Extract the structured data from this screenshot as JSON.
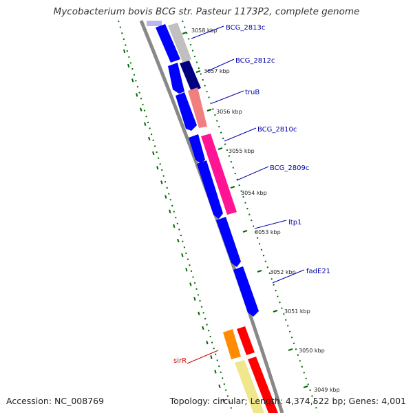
{
  "title": "Mycobacterium bovis BCG str. Pasteur 1173P2, complete genome",
  "accession": "Accession: NC_008769",
  "topology": "Topology: circular; Length: 4,374,522 bp; Genes: 4,001",
  "kbp_labels": [
    {
      "name": "kbp-3058",
      "text": "3058 kbp"
    },
    {
      "name": "kbp-3057",
      "text": "3057 kbp"
    },
    {
      "name": "kbp-3056",
      "text": "3056 kbp"
    },
    {
      "name": "kbp-3055",
      "text": "3055 kbp"
    },
    {
      "name": "kbp-3054",
      "text": "3054 kbp"
    },
    {
      "name": "kbp-3053",
      "text": "3053 kbp"
    },
    {
      "name": "kbp-3052",
      "text": "3052 kbp"
    },
    {
      "name": "kbp-3051",
      "text": "3051 kbp"
    },
    {
      "name": "kbp-3050",
      "text": "3050 kbp"
    },
    {
      "name": "kbp-3049",
      "text": "3049 kbp"
    }
  ],
  "gene_labels": [
    {
      "name": "BCG_2813c",
      "text": "BCG_2813c",
      "color": "#0000aa"
    },
    {
      "name": "BCG_2812c",
      "text": "BCG_2812c",
      "color": "#0000aa"
    },
    {
      "name": "truB",
      "text": "truB",
      "color": "#0000aa"
    },
    {
      "name": "BCG_2810c",
      "text": "BCG_2810c",
      "color": "#0000aa"
    },
    {
      "name": "BCG_2809c",
      "text": "BCG_2809c",
      "color": "#0000aa"
    },
    {
      "name": "ltp1",
      "text": "ltp1",
      "color": "#0000aa"
    },
    {
      "name": "fadE21",
      "text": "fadE21",
      "color": "#0000aa"
    },
    {
      "name": "sirR",
      "text": "sirR",
      "color": "#cc0000"
    }
  ],
  "colors": {
    "backbone": "#888888",
    "tick_green": "#006600",
    "cds_blue": "#0000ff",
    "gene_navy": "#000080",
    "gene_grey": "#c0c0c0",
    "gene_salmon": "#f08080",
    "gene_pink": "#ff1493",
    "gene_red": "#ff0000",
    "gene_orange": "#ff8c00",
    "gene_khaki": "#f0e68c"
  }
}
